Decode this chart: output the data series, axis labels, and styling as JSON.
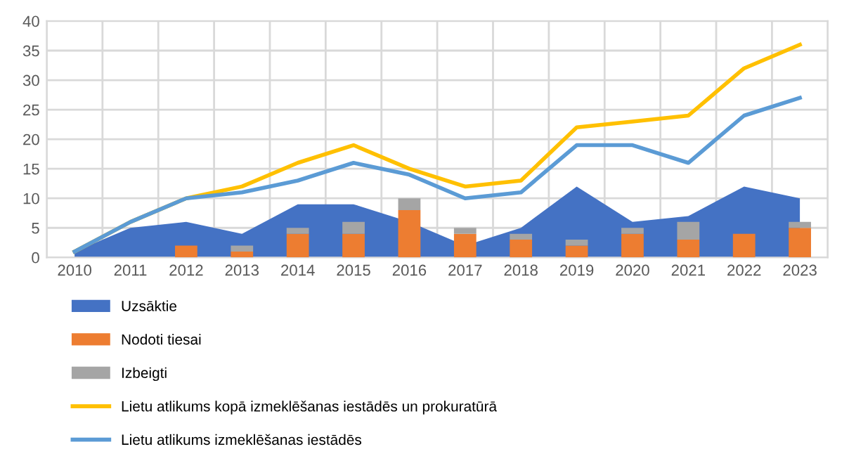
{
  "chart_data": {
    "type": "bar",
    "stacked": true,
    "categories": [
      "2010",
      "2011",
      "2012",
      "2013",
      "2014",
      "2015",
      "2016",
      "2017",
      "2018",
      "2019",
      "2020",
      "2021",
      "2022",
      "2023"
    ],
    "series": [
      {
        "name": "Uzsāktie",
        "type": "area",
        "color": "#4472c4",
        "values": [
          1,
          5,
          6,
          4,
          9,
          9,
          6,
          2,
          5,
          12,
          6,
          7,
          12,
          10
        ]
      },
      {
        "name": "Nodoti tiesai",
        "color": "#ed7d31",
        "values": [
          0,
          0,
          2,
          1,
          4,
          4,
          8,
          4,
          3,
          2,
          4,
          3,
          4,
          5
        ]
      },
      {
        "name": "Izbeigti",
        "color": "#a5a5a5",
        "values": [
          0,
          0,
          0,
          1,
          1,
          2,
          2,
          1,
          1,
          1,
          1,
          3,
          0,
          1
        ]
      },
      {
        "name": "Lietu atlikums kopā izmeklēšanas iestādēs un prokuratūrā",
        "type": "line",
        "color": "#ffc000",
        "values": [
          1,
          6,
          10,
          12,
          16,
          19,
          15,
          12,
          13,
          22,
          23,
          24,
          32,
          36
        ]
      },
      {
        "name": "Lietu atlikums izmeklēšanas iestādēs",
        "type": "line",
        "color": "#5b9bd5",
        "values": [
          1,
          6,
          10,
          11,
          13,
          16,
          14,
          10,
          11,
          19,
          19,
          16,
          24,
          27
        ]
      }
    ],
    "ylim": [
      0,
      40
    ],
    "yticks": [
      0,
      5,
      10,
      15,
      20,
      25,
      30,
      35,
      40
    ],
    "grid": true,
    "legend": "bottom",
    "marker": "none",
    "line_style": "solid"
  }
}
